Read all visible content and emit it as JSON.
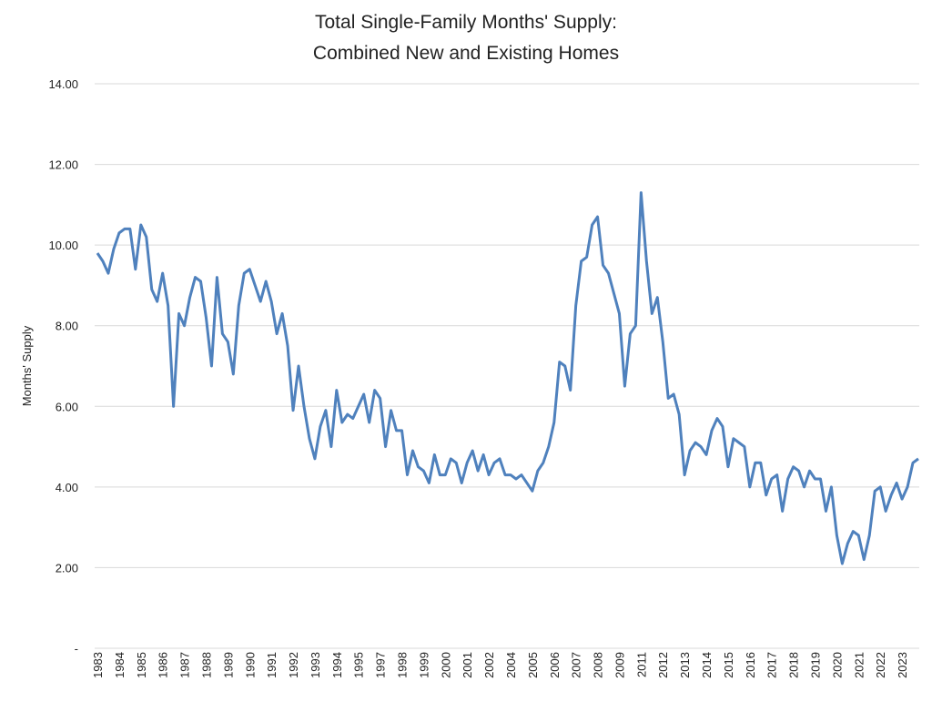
{
  "chart_data": {
    "type": "line",
    "title": [
      "Total Single-Family Months' Supply:",
      "Combined New and Existing Homes"
    ],
    "y_label": "Months' Supply",
    "categories": [
      "1983",
      null,
      null,
      null,
      "1984",
      null,
      null,
      null,
      "1985",
      null,
      null,
      null,
      "1986",
      null,
      null,
      null,
      "1987",
      null,
      null,
      null,
      "1988",
      null,
      null,
      null,
      "1989",
      null,
      null,
      null,
      "1990",
      null,
      null,
      null,
      "1991",
      null,
      null,
      null,
      "1992",
      null,
      null,
      null,
      "1993",
      null,
      null,
      null,
      "1994",
      null,
      null,
      null,
      "1995",
      null,
      null,
      null,
      "1997",
      null,
      null,
      null,
      "1998",
      null,
      null,
      null,
      "1999",
      null,
      null,
      null,
      "2000",
      null,
      null,
      null,
      "2001",
      null,
      null,
      null,
      "2002",
      null,
      null,
      null,
      "2004",
      null,
      null,
      null,
      "2005",
      null,
      null,
      null,
      "2006",
      null,
      null,
      null,
      "2007",
      null,
      null,
      null,
      "2008",
      null,
      null,
      null,
      "2009",
      null,
      null,
      null,
      "2011",
      null,
      null,
      null,
      "2012",
      null,
      null,
      null,
      "2013",
      null,
      null,
      null,
      "2014",
      null,
      null,
      null,
      "2015",
      null,
      null,
      null,
      "2016",
      null,
      null,
      null,
      "2017",
      null,
      null,
      null,
      "2018",
      null,
      null,
      null,
      "2019",
      null,
      null,
      null,
      "2020",
      null,
      null,
      null,
      "2021",
      null,
      null,
      null,
      "2022",
      null,
      null,
      null,
      "2023",
      null,
      null,
      null
    ],
    "values": [
      9.8,
      9.6,
      9.3,
      9.9,
      10.3,
      10.4,
      10.4,
      9.4,
      10.5,
      10.2,
      8.9,
      8.6,
      9.3,
      8.5,
      6.0,
      8.3,
      8.0,
      8.7,
      9.2,
      9.1,
      8.2,
      7.0,
      9.2,
      7.8,
      7.6,
      6.8,
      8.5,
      9.3,
      9.4,
      9.0,
      8.6,
      9.1,
      8.6,
      7.8,
      8.3,
      7.5,
      5.9,
      7.0,
      6.0,
      5.2,
      4.7,
      5.5,
      5.9,
      5.0,
      6.4,
      5.6,
      5.8,
      5.7,
      6.0,
      6.3,
      5.6,
      6.4,
      6.2,
      5.0,
      5.9,
      5.4,
      5.4,
      4.3,
      4.9,
      4.5,
      4.4,
      4.1,
      4.8,
      4.3,
      4.3,
      4.7,
      4.6,
      4.1,
      4.6,
      4.9,
      4.4,
      4.8,
      4.3,
      4.6,
      4.7,
      4.3,
      4.3,
      4.2,
      4.3,
      4.1,
      3.9,
      4.4,
      4.6,
      5.0,
      5.6,
      7.1,
      7.0,
      6.4,
      8.5,
      9.6,
      9.7,
      10.5,
      10.7,
      9.5,
      9.3,
      8.8,
      8.3,
      6.5,
      7.8,
      8.0,
      11.3,
      9.6,
      8.3,
      8.7,
      7.6,
      6.2,
      6.3,
      5.8,
      4.3,
      4.9,
      5.1,
      5.0,
      4.8,
      5.4,
      5.7,
      5.5,
      4.5,
      5.2,
      5.1,
      5.0,
      4.0,
      4.6,
      4.6,
      3.8,
      4.2,
      4.3,
      3.4,
      4.2,
      4.5,
      4.4,
      4.0,
      4.4,
      4.2,
      4.2,
      3.4,
      4.0,
      2.8,
      2.1,
      2.6,
      2.9,
      2.8,
      2.2,
      2.8,
      3.9,
      4.0,
      3.4,
      3.8,
      4.1,
      3.7,
      4.0,
      4.6,
      4.7
    ],
    "color": "#4f81bd",
    "ylim": [
      0,
      14
    ],
    "yticks": [
      {
        "value": 0,
        "label": "-"
      },
      {
        "value": 2,
        "label": "2.00"
      },
      {
        "value": 4,
        "label": "4.00"
      },
      {
        "value": 6,
        "label": "6.00"
      },
      {
        "value": 8,
        "label": "8.00"
      },
      {
        "value": 10,
        "label": "10.00"
      },
      {
        "value": 12,
        "label": "12.00"
      },
      {
        "value": 14,
        "label": "14.00"
      }
    ],
    "grid": true
  }
}
